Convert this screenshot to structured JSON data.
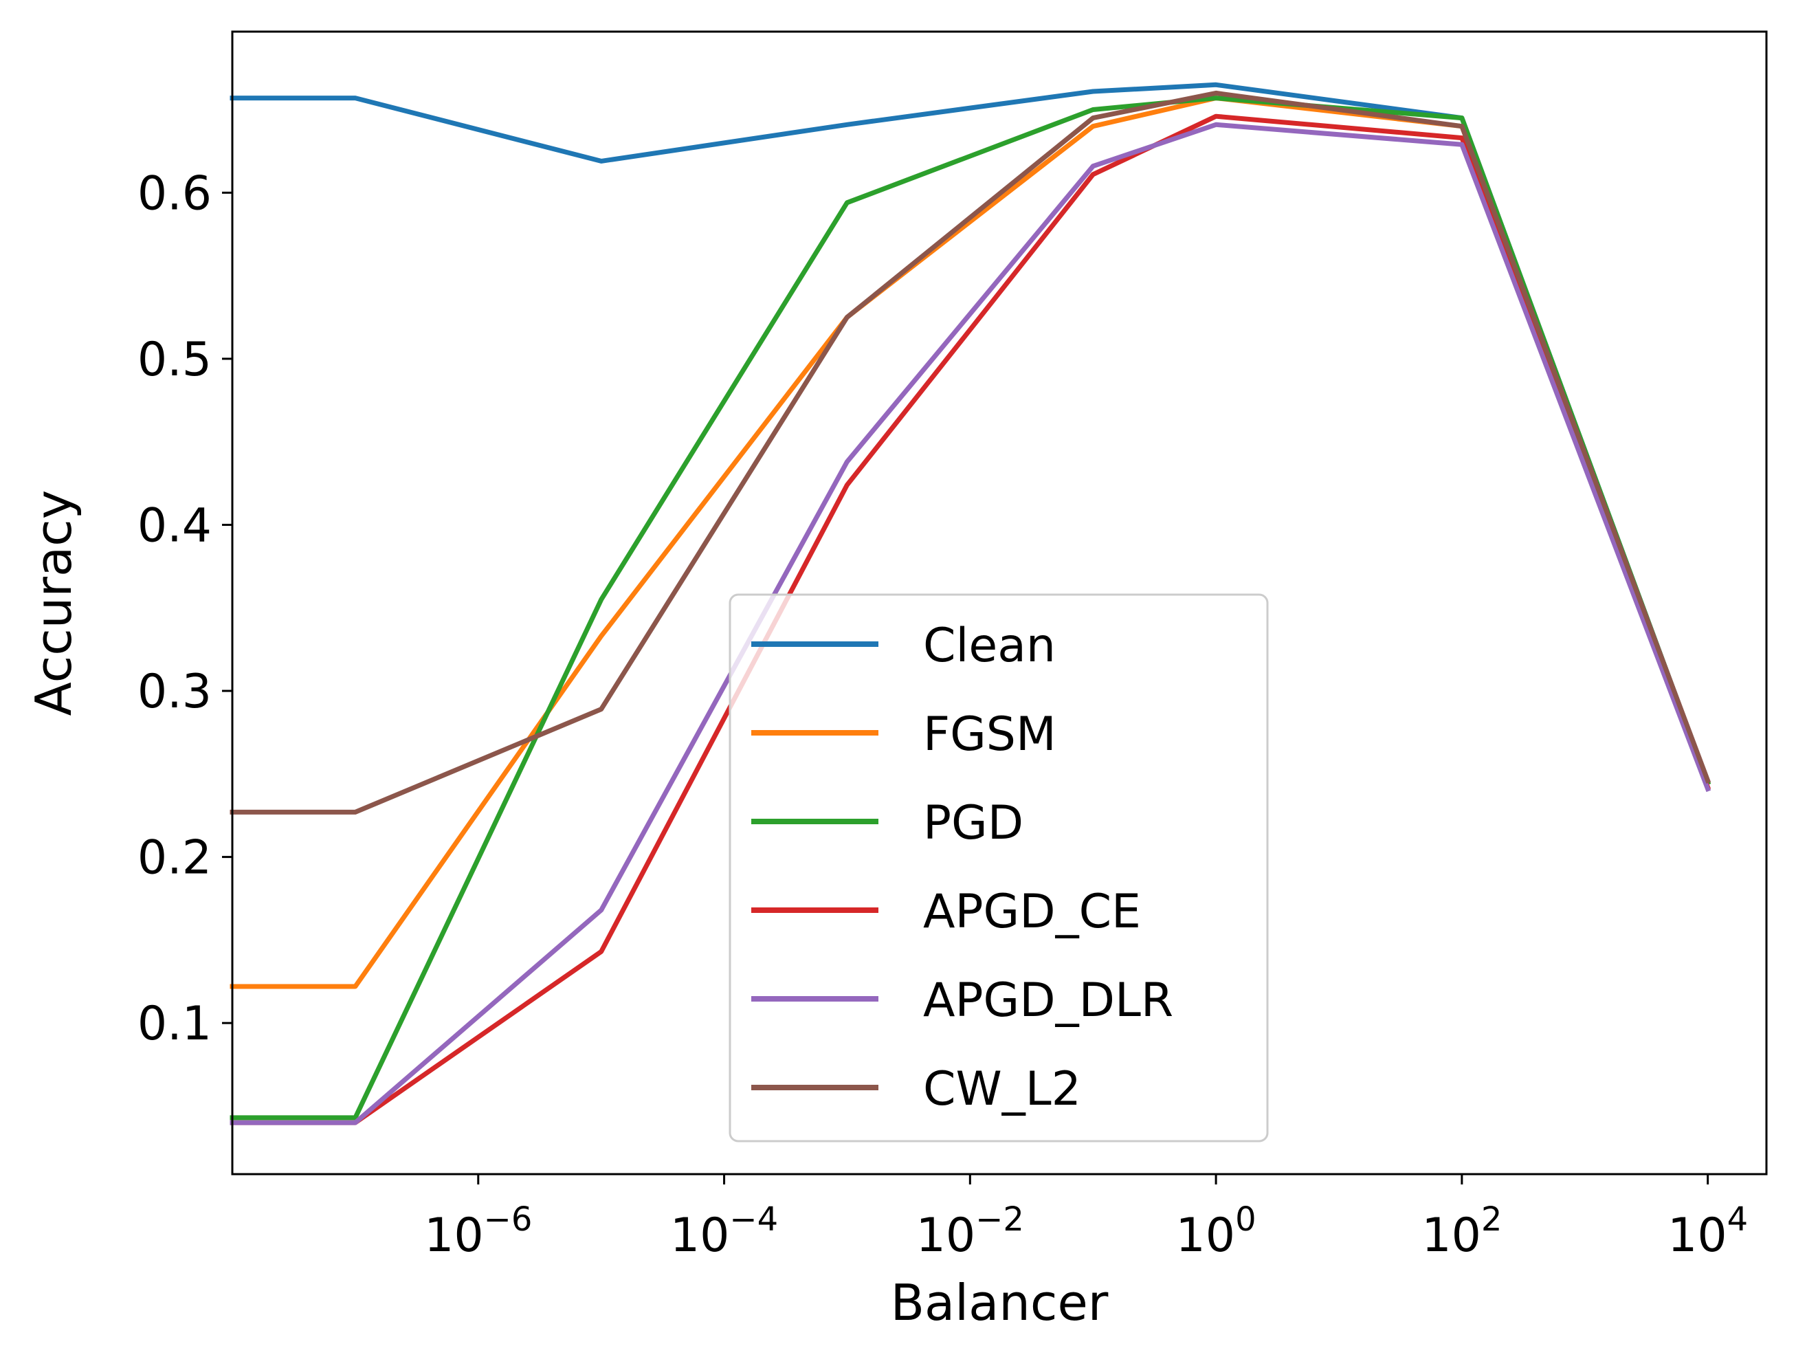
{
  "chart_data": {
    "type": "line",
    "title": "",
    "xlabel": "Balancer",
    "ylabel": "Accuracy",
    "xscale": "log",
    "xlim": [
      1e-08,
      30000
    ],
    "ylim": [
      0.009,
      0.697
    ],
    "x": [
      1e-08,
      1e-07,
      1e-05,
      0.001,
      0.1,
      1,
      100,
      10000
    ],
    "xticks": [
      {
        "value": 1e-06,
        "base": "10",
        "exp": "−6"
      },
      {
        "value": 0.0001,
        "base": "10",
        "exp": "−4"
      },
      {
        "value": 0.01,
        "base": "10",
        "exp": "−2"
      },
      {
        "value": 1,
        "base": "10",
        "exp": "0"
      },
      {
        "value": 100,
        "base": "10",
        "exp": "2"
      },
      {
        "value": 10000,
        "base": "10",
        "exp": "4"
      }
    ],
    "yticks": [
      {
        "value": 0.1,
        "label": "0.1"
      },
      {
        "value": 0.2,
        "label": "0.2"
      },
      {
        "value": 0.3,
        "label": "0.3"
      },
      {
        "value": 0.4,
        "label": "0.4"
      },
      {
        "value": 0.5,
        "label": "0.5"
      },
      {
        "value": 0.6,
        "label": "0.6"
      }
    ],
    "grid": false,
    "legend_position": "lower-center",
    "series": [
      {
        "name": "Clean",
        "color": "#1f77b4",
        "values": [
          0.657,
          0.657,
          0.619,
          0.641,
          0.661,
          0.665,
          0.645,
          0.245
        ]
      },
      {
        "name": "FGSM",
        "color": "#ff7f0e",
        "values": [
          0.122,
          0.122,
          0.333,
          0.525,
          0.64,
          0.657,
          0.64,
          0.245
        ]
      },
      {
        "name": "PGD",
        "color": "#2ca02c",
        "values": [
          0.043,
          0.043,
          0.355,
          0.594,
          0.65,
          0.657,
          0.645,
          0.245
        ]
      },
      {
        "name": "APGD_CE",
        "color": "#d62728",
        "values": [
          0.04,
          0.04,
          0.143,
          0.424,
          0.611,
          0.646,
          0.633,
          0.242
        ]
      },
      {
        "name": "APGD_DLR",
        "color": "#9467bd",
        "values": [
          0.04,
          0.04,
          0.168,
          0.438,
          0.616,
          0.641,
          0.629,
          0.241
        ]
      },
      {
        "name": "CW_L2",
        "color": "#8c564b",
        "values": [
          0.227,
          0.227,
          0.289,
          0.525,
          0.645,
          0.66,
          0.64,
          0.246
        ]
      }
    ]
  }
}
